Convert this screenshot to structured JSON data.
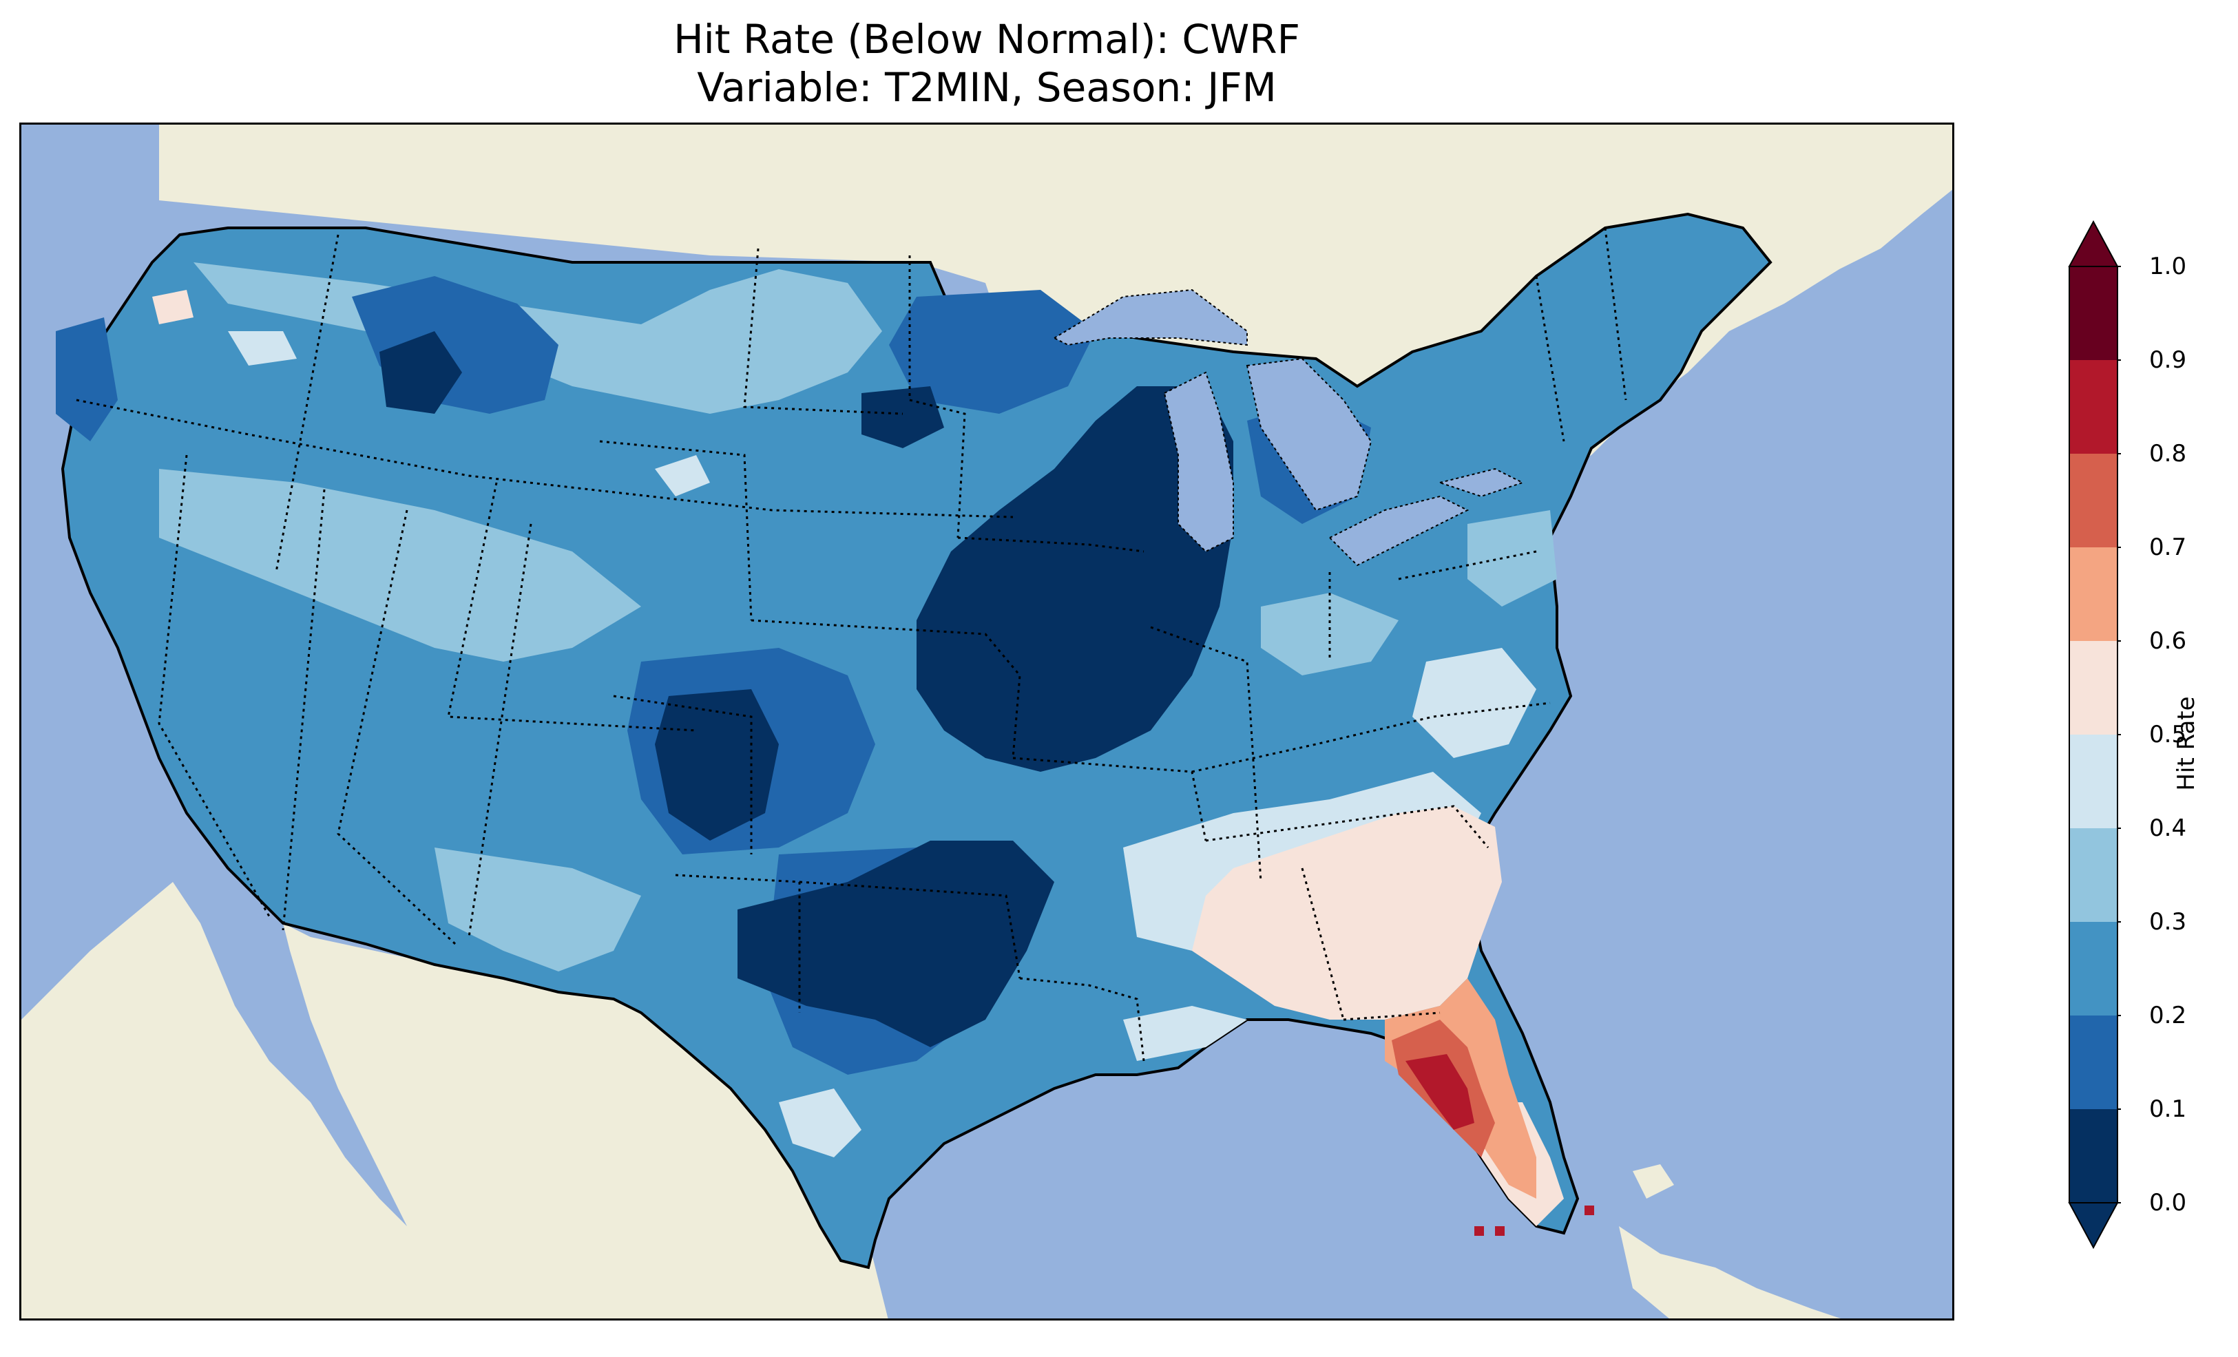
{
  "figure": {
    "title_line1": "Hit Rate (Below Normal): CWRF",
    "title_line2": "Variable: T2MIN, Season: JFM"
  },
  "map": {
    "ocean_color": "#95b2dd",
    "land_color": "#efedda",
    "lake_color": "#95b2dd"
  },
  "colorbar": {
    "label": "Hit Rate",
    "ticks": [
      "0.0",
      "0.1",
      "0.2",
      "0.3",
      "0.4",
      "0.5",
      "0.6",
      "0.7",
      "0.8",
      "0.9",
      "1.0"
    ],
    "bins": [
      {
        "range": "0.0-0.1",
        "color": "#053061"
      },
      {
        "range": "0.1-0.2",
        "color": "#2166ac"
      },
      {
        "range": "0.2-0.3",
        "color": "#4393c3"
      },
      {
        "range": "0.3-0.4",
        "color": "#92c5de"
      },
      {
        "range": "0.4-0.5",
        "color": "#d1e5f0"
      },
      {
        "range": "0.5-0.6",
        "color": "#f7e3da"
      },
      {
        "range": "0.6-0.7",
        "color": "#f4a582"
      },
      {
        "range": "0.7-0.8",
        "color": "#d6604d"
      },
      {
        "range": "0.8-0.9",
        "color": "#b2182b"
      },
      {
        "range": "0.9-1.0",
        "color": "#67001f"
      }
    ],
    "extend": "both"
  }
}
